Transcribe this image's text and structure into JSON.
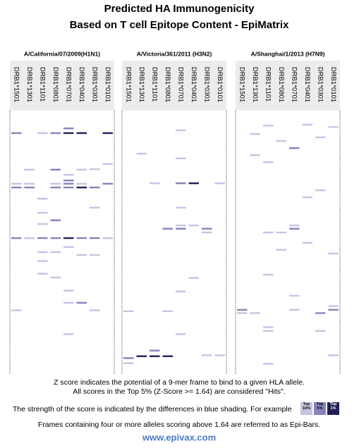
{
  "chart_data": {
    "type": "epimatrix",
    "title": [
      "Predicted HA Immunogenicity",
      "Based on T cell Epitope Content - EpiMatrix"
    ],
    "ylim": [
      0,
      550
    ],
    "level_colors": [
      "#c4c4e4",
      "#8383bd",
      "#1f1f55"
    ],
    "panels": [
      {
        "title": "A/California/07/2009(H1N1)",
        "alleles": [
          "DRB1*1501",
          "DRB1*1301",
          "DRB1*1101",
          "DRB1*0801",
          "DRB1*0701",
          "DRB1*0401",
          "DRB1*0301",
          "DRB1*0101"
        ],
        "hits": [
          [
            0,
            36,
            1
          ],
          [
            0,
            144,
            0
          ],
          [
            0,
            152,
            1
          ],
          [
            0,
            260,
            1
          ],
          [
            0,
            414,
            0
          ],
          [
            1,
            114,
            0
          ],
          [
            1,
            144,
            0
          ],
          [
            1,
            152,
            1
          ],
          [
            1,
            260,
            0
          ],
          [
            2,
            36,
            0
          ],
          [
            2,
            176,
            0
          ],
          [
            2,
            206,
            0
          ],
          [
            2,
            230,
            0
          ],
          [
            2,
            260,
            1
          ],
          [
            2,
            290,
            0
          ],
          [
            2,
            309,
            0
          ],
          [
            2,
            336,
            0
          ],
          [
            3,
            36,
            1
          ],
          [
            3,
            114,
            1
          ],
          [
            3,
            144,
            0
          ],
          [
            3,
            152,
            1
          ],
          [
            3,
            222,
            1
          ],
          [
            3,
            260,
            1
          ],
          [
            3,
            290,
            0
          ],
          [
            3,
            344,
            0
          ],
          [
            4,
            26,
            1
          ],
          [
            4,
            36,
            2
          ],
          [
            4,
            125,
            0
          ],
          [
            4,
            137,
            1
          ],
          [
            4,
            144,
            1
          ],
          [
            4,
            152,
            1
          ],
          [
            4,
            260,
            2
          ],
          [
            4,
            279,
            0
          ],
          [
            4,
            372,
            0
          ],
          [
            4,
            398,
            0
          ],
          [
            4,
            465,
            0
          ],
          [
            5,
            36,
            2
          ],
          [
            5,
            114,
            0
          ],
          [
            5,
            144,
            0
          ],
          [
            5,
            152,
            2
          ],
          [
            5,
            260,
            1
          ],
          [
            5,
            296,
            0
          ],
          [
            5,
            398,
            1
          ],
          [
            6,
            113,
            0
          ],
          [
            6,
            152,
            1
          ],
          [
            6,
            195,
            0
          ],
          [
            6,
            260,
            1
          ],
          [
            6,
            296,
            0
          ],
          [
            6,
            414,
            0
          ],
          [
            7,
            36,
            2
          ],
          [
            7,
            102,
            0
          ],
          [
            7,
            144,
            1
          ],
          [
            7,
            260,
            0
          ]
        ]
      },
      {
        "title": "A/Victoria/361/2011 (H3N2)",
        "alleles": [
          "DRB1*1501",
          "DRB1*1301",
          "DRB1*1101",
          "DRB1*0801",
          "DRB1*0701",
          "DRB1*0401",
          "DRB1*0301",
          "DRB1*0101"
        ],
        "hits": [
          [
            0,
            416,
            0
          ],
          [
            0,
            516,
            1
          ],
          [
            0,
            527,
            0
          ],
          [
            1,
            80,
            0
          ],
          [
            1,
            512,
            2
          ],
          [
            2,
            143,
            0
          ],
          [
            2,
            500,
            1
          ],
          [
            2,
            512,
            2
          ],
          [
            3,
            240,
            1
          ],
          [
            3,
            416,
            0
          ],
          [
            3,
            512,
            2
          ],
          [
            4,
            30,
            0
          ],
          [
            4,
            90,
            0
          ],
          [
            4,
            143,
            1
          ],
          [
            4,
            195,
            0
          ],
          [
            4,
            233,
            0
          ],
          [
            4,
            240,
            1
          ],
          [
            4,
            374,
            0
          ],
          [
            4,
            465,
            0
          ],
          [
            5,
            143,
            2
          ],
          [
            5,
            233,
            0
          ],
          [
            5,
            345,
            0
          ],
          [
            6,
            240,
            1
          ],
          [
            6,
            248,
            0
          ],
          [
            6,
            510,
            0
          ],
          [
            7,
            143,
            0
          ],
          [
            7,
            510,
            0
          ]
        ]
      },
      {
        "title": "A/Shanghai/1/2013 (H7N9)",
        "alleles": [
          "DRB1*1501",
          "DRB1*1301",
          "DRB1*1101",
          "DRB1*0801",
          "DRB1*0701",
          "DRB1*0401",
          "DRB1*0301",
          "DRB1*0101"
        ],
        "hits": [
          [
            0,
            413,
            1
          ],
          [
            0,
            420,
            0
          ],
          [
            1,
            38,
            0
          ],
          [
            1,
            83,
            0
          ],
          [
            1,
            420,
            0
          ],
          [
            2,
            20,
            0
          ],
          [
            2,
            98,
            0
          ],
          [
            2,
            248,
            0
          ],
          [
            2,
            338,
            0
          ],
          [
            2,
            450,
            0
          ],
          [
            2,
            458,
            0
          ],
          [
            2,
            528,
            0
          ],
          [
            3,
            53,
            0
          ],
          [
            3,
            248,
            0
          ],
          [
            3,
            285,
            0
          ],
          [
            4,
            68,
            1
          ],
          [
            4,
            233,
            0
          ],
          [
            4,
            240,
            1
          ],
          [
            4,
            383,
            0
          ],
          [
            4,
            413,
            0
          ],
          [
            5,
            18,
            0
          ],
          [
            5,
            173,
            0
          ],
          [
            5,
            270,
            0
          ],
          [
            6,
            45,
            0
          ],
          [
            6,
            158,
            0
          ],
          [
            6,
            420,
            1
          ],
          [
            6,
            458,
            0
          ],
          [
            7,
            23,
            0
          ],
          [
            7,
            293,
            0
          ],
          [
            7,
            405,
            0
          ],
          [
            7,
            413,
            1
          ],
          [
            7,
            510,
            0
          ]
        ]
      }
    ],
    "notes": [
      "Z score indicates the potential of a 9-mer frame to bind to a given HLA allele.",
      "All scores in the Top 5% (Z-Score >= 1.64) are considered \"Hits\".",
      "The strength of the score is indicated by the differences in blue shading. For example",
      "Frames containing four or more alleles scoring above 1.64 are referred to as Epi-Bars."
    ],
    "legend": [
      "Top 10%",
      "Top 5%",
      "Top 1%"
    ],
    "footer": "www.epivax.com"
  }
}
